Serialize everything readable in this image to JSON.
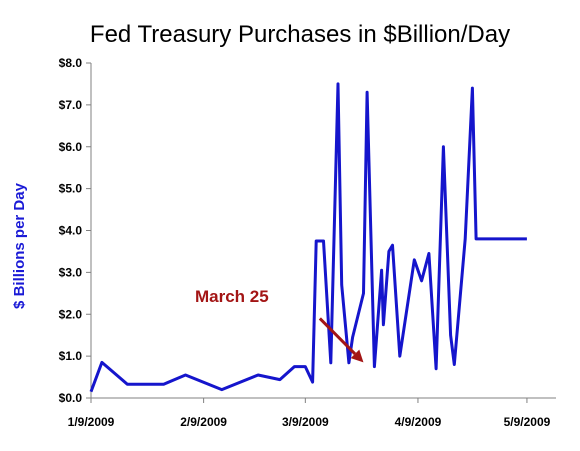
{
  "chart_data": {
    "type": "line",
    "title": "Fed Treasury Purchases in $Billion/Day",
    "ylabel": "$ Billions per Day",
    "xlabel": "",
    "xlim": [
      0,
      128
    ],
    "ylim": [
      0,
      8
    ],
    "y_ticks": [
      0,
      1,
      2,
      3,
      4,
      5,
      6,
      7,
      8
    ],
    "y_tick_labels": [
      "$0.0",
      "$1.0",
      "$2.0",
      "$3.0",
      "$4.0",
      "$5.0",
      "$6.0",
      "$7.0",
      "$8.0"
    ],
    "x_ticks": [
      0,
      31,
      59,
      90,
      120
    ],
    "x_tick_labels": [
      "1/9/2009",
      "2/9/2009",
      "3/9/2009",
      "4/9/2009",
      "5/9/2009"
    ],
    "grid": false,
    "line_color": "#1515cc",
    "annotation": {
      "text": "March 25",
      "color": "#a31515",
      "arrow_from": [
        63,
        1.9
      ],
      "arrow_to": [
        75,
        0.85
      ]
    },
    "series": [
      {
        "values_x": [
          0,
          3,
          10,
          13,
          15,
          20,
          26,
          36,
          46,
          52,
          56,
          57,
          59,
          61,
          62,
          64,
          66,
          68,
          69,
          71,
          72,
          75,
          76,
          78,
          80,
          80.5,
          82,
          83,
          85,
          89,
          91,
          93,
          95,
          97,
          99,
          100,
          103,
          105,
          106,
          108,
          110,
          114,
          116,
          118,
          120
        ],
        "values_y": [
          0.15,
          0.85,
          0.33,
          0.33,
          0.33,
          0.33,
          0.55,
          0.2,
          0.55,
          0.44,
          0.75,
          0.75,
          0.75,
          0.38,
          3.75,
          3.75,
          0.84,
          7.5,
          2.7,
          0.84,
          1.45,
          2.5,
          7.3,
          0.75,
          3.05,
          1.75,
          3.5,
          3.65,
          1.0,
          3.3,
          2.8,
          3.45,
          0.7,
          6.0,
          1.5,
          0.8,
          3.8,
          7.4,
          3.8,
          3.8,
          3.8,
          3.8,
          3.8,
          3.8,
          3.8
        ]
      }
    ]
  }
}
